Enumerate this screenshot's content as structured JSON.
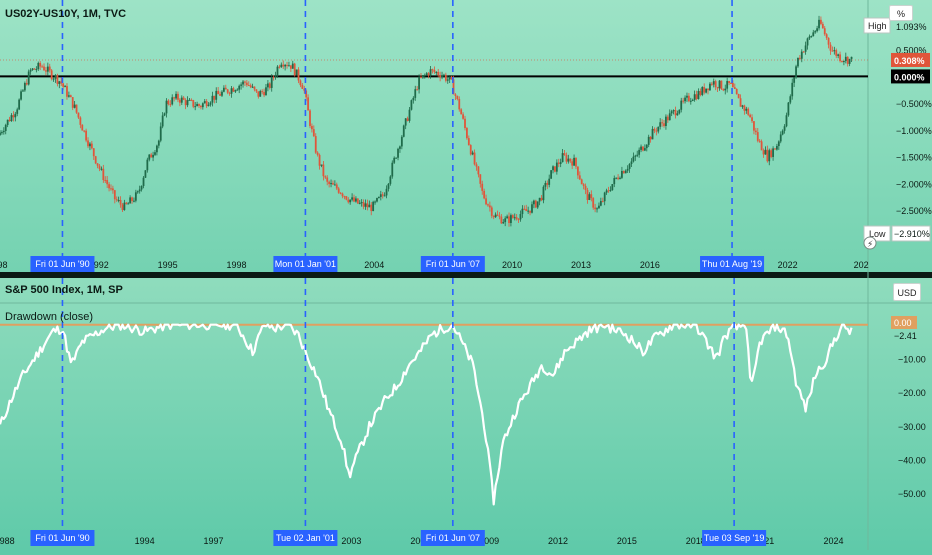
{
  "top_pane": {
    "title": "US02Y-US10Y, 1M, TVC",
    "scale_unit_button": "%",
    "high_label": "High",
    "high_value": "1.093%",
    "low_label": "Low",
    "low_value": "−2.910%",
    "price_tag": "0.308%",
    "zero_tag": "0.000%",
    "axis_ticks": [
      {
        "label": "0.500%",
        "value": 0.5
      },
      {
        "label": "−0.500%",
        "value": -0.5
      },
      {
        "label": "−1.000%",
        "value": -1.0
      },
      {
        "label": "−1.500%",
        "value": -1.5
      },
      {
        "label": "−2.000%",
        "value": -2.0
      },
      {
        "label": "−2.500%",
        "value": -2.5
      }
    ],
    "x_ticks": [
      {
        "label": "198",
        "year": 1987.7
      },
      {
        "label": "1992",
        "year": 1992
      },
      {
        "label": "1995",
        "year": 1995
      },
      {
        "label": "1998",
        "year": 1998
      },
      {
        "label": "2004",
        "year": 2004
      },
      {
        "label": "2010",
        "year": 2010
      },
      {
        "label": "2013",
        "year": 2013
      },
      {
        "label": "2016",
        "year": 2016
      },
      {
        "label": "2022",
        "year": 2022
      },
      {
        "label": "202",
        "year": 2025.2
      }
    ],
    "date_badges": [
      {
        "label": "Fri 01 Jun '90",
        "year": 1990.42
      },
      {
        "label": "Mon 01 Jan '01",
        "year": 2001.0
      },
      {
        "label": "Fri 01 Jun '07",
        "year": 2007.42
      },
      {
        "label": "Thu 01 Aug '19",
        "year": 2019.58
      }
    ]
  },
  "bottom_pane": {
    "title": "S&P 500 Index, 1M, SP",
    "indicator": "Drawdown (close)",
    "scale_unit_button": "USD",
    "zero_tag": "0.00",
    "last_value_tag": "−2.41",
    "axis_ticks": [
      {
        "label": "−10.00",
        "value": -10
      },
      {
        "label": "−20.00",
        "value": -20
      },
      {
        "label": "−30.00",
        "value": -30
      },
      {
        "label": "−40.00",
        "value": -40
      },
      {
        "label": "−50.00",
        "value": -50
      }
    ],
    "x_ticks": [
      {
        "label": "1988",
        "year": 1987.9
      },
      {
        "label": "1994",
        "year": 1994
      },
      {
        "label": "1997",
        "year": 1997
      },
      {
        "label": "2003",
        "year": 2003
      },
      {
        "label": "200",
        "year": 2005.9
      },
      {
        "label": "2009",
        "year": 2009
      },
      {
        "label": "2012",
        "year": 2012
      },
      {
        "label": "2015",
        "year": 2015
      },
      {
        "label": "2018",
        "year": 2018
      },
      {
        "label": "21",
        "year": 2021.2
      },
      {
        "label": "2024",
        "year": 2024
      }
    ],
    "date_badges": [
      {
        "label": "Fri 01 Jun '90",
        "year": 1990.42
      },
      {
        "label": "Tue 02 Jan '01",
        "year": 2001.0
      },
      {
        "label": "Fri 01 Jun '07",
        "year": 2007.42
      },
      {
        "label": "Tue 03 Sep '19",
        "year": 2019.67
      }
    ]
  },
  "colors": {
    "bg_top": "#9de3c6",
    "bg_bottom": "#5fcaa9",
    "up_candle": "#1f6b4a",
    "down_candle": "#e0553a",
    "badge": "#2962ff",
    "drawdown_line": "#ffffff",
    "zero_line_top": "#000000",
    "zero_line_bottom": "#e0a060",
    "price_tag": "#e0553a"
  },
  "chart_data": [
    {
      "type": "candlestick",
      "title": "US02Y-US10Y, 1M, TVC",
      "ylabel": "%",
      "ylim": [
        -2.91,
        1.093
      ],
      "x_range": [
        1987.7,
        2025.5
      ],
      "x": [
        1987.7,
        1988.5,
        1989.1,
        1989.6,
        1990.0,
        1990.42,
        1991.0,
        1991.6,
        1992.2,
        1992.8,
        1993.2,
        1993.8,
        1994.2,
        1994.7,
        1995.0,
        1995.5,
        1996.0,
        1996.5,
        1997.0,
        1997.5,
        1998.0,
        1998.5,
        1999.0,
        1999.5,
        2000.0,
        2000.5,
        2001.0,
        2001.3,
        2001.6,
        2002.0,
        2002.5,
        2003.0,
        2003.5,
        2004.0,
        2004.5,
        2005.0,
        2005.5,
        2006.0,
        2006.5,
        2007.0,
        2007.42,
        2007.8,
        2008.3,
        2008.8,
        2009.3,
        2009.8,
        2010.3,
        2010.8,
        2011.3,
        2011.8,
        2012.3,
        2012.8,
        2013.3,
        2013.8,
        2014.3,
        2014.8,
        2015.3,
        2015.8,
        2016.3,
        2016.8,
        2017.3,
        2017.8,
        2018.3,
        2018.8,
        2019.3,
        2019.58,
        2020.0,
        2020.4,
        2020.8,
        2021.2,
        2021.6,
        2022.0,
        2022.5,
        2023.0,
        2023.5,
        2024.0,
        2024.4,
        2024.8
      ],
      "y": [
        -1.1,
        -0.6,
        0.1,
        0.2,
        0.05,
        -0.1,
        -0.55,
        -1.2,
        -1.8,
        -2.3,
        -2.45,
        -2.2,
        -1.6,
        -1.2,
        -0.5,
        -0.4,
        -0.5,
        -0.55,
        -0.4,
        -0.3,
        -0.2,
        -0.1,
        -0.35,
        -0.2,
        0.3,
        0.2,
        -0.2,
        -0.9,
        -1.5,
        -2.0,
        -2.1,
        -2.3,
        -2.4,
        -2.45,
        -2.2,
        -1.5,
        -0.8,
        -0.1,
        0.1,
        0.05,
        -0.1,
        -0.6,
        -1.4,
        -2.2,
        -2.6,
        -2.7,
        -2.6,
        -2.5,
        -2.3,
        -1.8,
        -1.5,
        -1.6,
        -2.2,
        -2.5,
        -2.1,
        -1.8,
        -1.6,
        -1.3,
        -1.0,
        -0.8,
        -0.6,
        -0.4,
        -0.3,
        -0.1,
        -0.2,
        -0.15,
        -0.5,
        -0.7,
        -1.2,
        -1.5,
        -1.3,
        -0.8,
        0.3,
        0.7,
        1.0,
        0.5,
        0.35,
        0.31
      ],
      "last_value": 0.308,
      "reference_line": 0.0
    },
    {
      "type": "line",
      "title": "S&P 500 Index, 1M, SP",
      "series": [
        {
          "name": "Drawdown (close)"
        }
      ],
      "ylim": [
        -55,
        2
      ],
      "x_range": [
        1987.7,
        2025.5
      ],
      "x": [
        1987.7,
        1988.2,
        1988.7,
        1989.2,
        1989.7,
        1990.0,
        1990.42,
        1990.8,
        1991.3,
        1991.8,
        1992.3,
        1993.0,
        1994.0,
        1995.0,
        1996.0,
        1997.0,
        1998.0,
        1998.7,
        1999.2,
        1999.7,
        2000.2,
        2000.7,
        2001.0,
        2001.5,
        2002.0,
        2002.6,
        2002.9,
        2003.3,
        2003.8,
        2004.5,
        2005.0,
        2005.5,
        2006.0,
        2006.5,
        2007.0,
        2007.42,
        2007.8,
        2008.3,
        2008.8,
        2009.2,
        2009.6,
        2010.2,
        2010.8,
        2011.3,
        2011.8,
        2012.3,
        2012.8,
        2013.3,
        2014.0,
        2015.0,
        2015.7,
        2016.2,
        2017.0,
        2018.0,
        2018.9,
        2019.3,
        2019.67,
        2020.2,
        2020.4,
        2020.8,
        2021.5,
        2022.0,
        2022.4,
        2022.8,
        2023.2,
        2023.7,
        2024.0,
        2024.4,
        2024.8
      ],
      "y": [
        -30,
        -22,
        -15,
        -10,
        -5,
        -2,
        -1,
        -12,
        -5,
        -3,
        -1,
        0,
        -2,
        0,
        0,
        0,
        0,
        -8,
        0,
        -1,
        0,
        -3,
        -8,
        -15,
        -25,
        -35,
        -45,
        -38,
        -30,
        -22,
        -18,
        -12,
        -8,
        -3,
        -1,
        0,
        -5,
        -12,
        -30,
        -52,
        -35,
        -25,
        -18,
        -12,
        -15,
        -8,
        -5,
        -2,
        0,
        -3,
        -8,
        -4,
        0,
        0,
        -10,
        -3,
        -1,
        0,
        -20,
        -5,
        0,
        -3,
        -18,
        -25,
        -15,
        -10,
        -5,
        0,
        -2.41
      ],
      "last_value": -2.41,
      "reference_line": 0
    }
  ]
}
